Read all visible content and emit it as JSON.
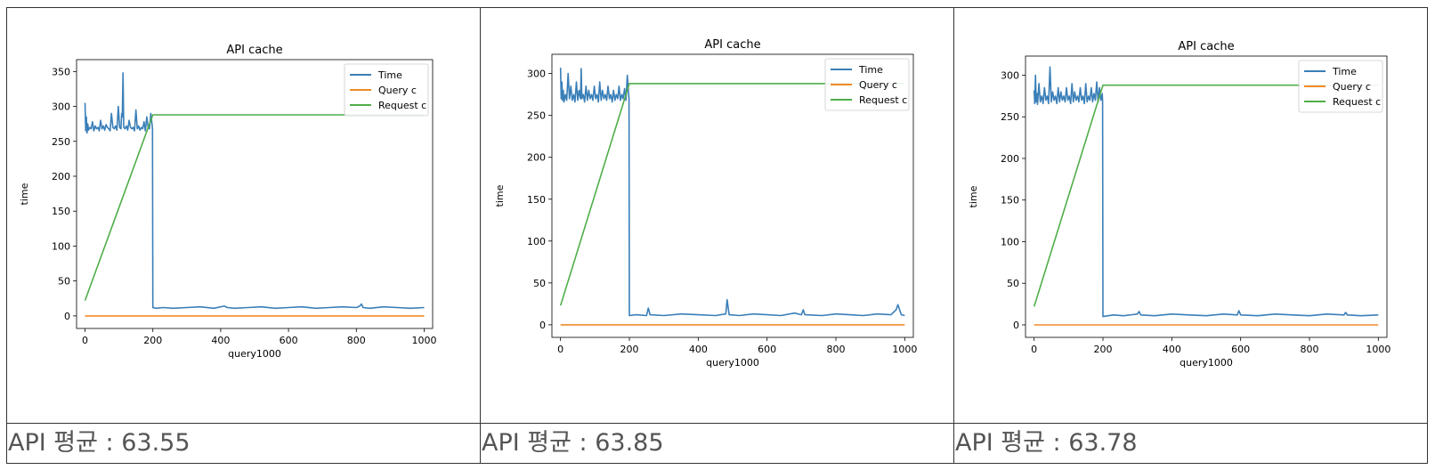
{
  "cells": [
    {
      "avg_label": "API 평균 : 63.55"
    },
    {
      "avg_label": "API 평균 : 63.85"
    },
    {
      "avg_label": "API 평균 : 63.78"
    }
  ],
  "chart_data": [
    {
      "type": "line",
      "title": "API cache",
      "xlabel": "query1000",
      "ylabel": "time",
      "xlim": [
        -25,
        1025
      ],
      "ylim": [
        -18,
        367
      ],
      "xticks": [
        0,
        200,
        400,
        600,
        800,
        1000
      ],
      "yticks": [
        0,
        50,
        100,
        150,
        200,
        250,
        300,
        350
      ],
      "legend": "top-right",
      "series": [
        {
          "name": "Time",
          "color": "#3a7fb8",
          "x": [
            0,
            2,
            4,
            6,
            8,
            10,
            14,
            18,
            22,
            26,
            30,
            34,
            38,
            42,
            46,
            50,
            54,
            58,
            62,
            66,
            70,
            74,
            78,
            82,
            86,
            90,
            94,
            98,
            102,
            106,
            108,
            110,
            112,
            114,
            118,
            122,
            126,
            130,
            134,
            138,
            142,
            146,
            150,
            154,
            158,
            162,
            166,
            170,
            174,
            178,
            182,
            186,
            190,
            194,
            198,
            199,
            200,
            210,
            230,
            260,
            300,
            340,
            380,
            410,
            420,
            440,
            480,
            520,
            560,
            600,
            640,
            680,
            720,
            760,
            800,
            810,
            815,
            820,
            840,
            880,
            920,
            960,
            1000
          ],
          "values": [
            305,
            265,
            285,
            262,
            275,
            266,
            270,
            268,
            278,
            265,
            272,
            268,
            270,
            265,
            280,
            268,
            272,
            266,
            274,
            270,
            268,
            265,
            290,
            270,
            268,
            272,
            266,
            300,
            270,
            268,
            290,
            285,
            348,
            270,
            268,
            272,
            266,
            280,
            270,
            268,
            270,
            265,
            295,
            268,
            272,
            266,
            270,
            268,
            278,
            265,
            285,
            270,
            268,
            290,
            272,
            268,
            12,
            11,
            12,
            11,
            12,
            13,
            11,
            14,
            12,
            11,
            12,
            13,
            11,
            12,
            13,
            11,
            12,
            13,
            12,
            14,
            17,
            12,
            11,
            13,
            12,
            11,
            12
          ]
        },
        {
          "name": "Query c",
          "color": "#f08b26",
          "x": [
            0,
            1000
          ],
          "values": [
            0,
            0
          ]
        },
        {
          "name": "Request c",
          "color": "#4fae48",
          "x": [
            0,
            200,
            1000
          ],
          "values": [
            22,
            288,
            288
          ]
        }
      ]
    },
    {
      "type": "line",
      "title": "API cache",
      "xlabel": "query1000",
      "ylabel": "time",
      "xlim": [
        -25,
        1025
      ],
      "ylim": [
        -15,
        323
      ],
      "xticks": [
        0,
        200,
        400,
        600,
        800,
        1000
      ],
      "yticks": [
        0,
        50,
        100,
        150,
        200,
        250,
        300
      ],
      "legend": "top-right",
      "series": [
        {
          "name": "Time",
          "color": "#3a7fb8",
          "x": [
            0,
            2,
            4,
            6,
            8,
            10,
            14,
            18,
            22,
            26,
            30,
            34,
            38,
            42,
            46,
            50,
            54,
            58,
            60,
            62,
            66,
            70,
            74,
            78,
            82,
            86,
            90,
            94,
            98,
            102,
            106,
            110,
            114,
            118,
            122,
            126,
            130,
            134,
            138,
            142,
            146,
            150,
            154,
            158,
            162,
            166,
            170,
            174,
            178,
            182,
            186,
            190,
            194,
            198,
            199,
            200,
            220,
            250,
            255,
            260,
            300,
            350,
            400,
            450,
            480,
            484,
            490,
            520,
            560,
            600,
            640,
            680,
            700,
            705,
            710,
            760,
            800,
            840,
            880,
            920,
            960,
            975,
            980,
            990,
            1000
          ],
          "values": [
            307,
            270,
            290,
            268,
            280,
            266,
            275,
            268,
            300,
            270,
            285,
            268,
            275,
            266,
            290,
            268,
            280,
            270,
            306,
            270,
            275,
            266,
            285,
            268,
            280,
            270,
            275,
            268,
            285,
            270,
            275,
            266,
            290,
            268,
            280,
            270,
            275,
            268,
            285,
            270,
            275,
            266,
            280,
            268,
            275,
            270,
            285,
            268,
            275,
            270,
            282,
            268,
            298,
            275,
            270,
            11,
            12,
            11,
            20,
            12,
            11,
            13,
            12,
            11,
            13,
            30,
            12,
            11,
            13,
            12,
            11,
            14,
            12,
            18,
            12,
            11,
            13,
            12,
            11,
            13,
            12,
            18,
            24,
            12,
            11
          ]
        },
        {
          "name": "Query c",
          "color": "#f08b26",
          "x": [
            0,
            1000
          ],
          "values": [
            0,
            0
          ]
        },
        {
          "name": "Request c",
          "color": "#4fae48",
          "x": [
            0,
            200,
            1000
          ],
          "values": [
            23,
            288,
            288
          ]
        }
      ]
    },
    {
      "type": "line",
      "title": "API cache",
      "xlabel": "query1000",
      "ylabel": "time",
      "xlim": [
        -25,
        1025
      ],
      "ylim": [
        -15,
        323
      ],
      "xticks": [
        0,
        200,
        400,
        600,
        800,
        1000
      ],
      "yticks": [
        0,
        50,
        100,
        150,
        200,
        250,
        300
      ],
      "legend": "top-right",
      "series": [
        {
          "name": "Time",
          "color": "#3a7fb8",
          "x": [
            0,
            2,
            4,
            6,
            8,
            10,
            14,
            18,
            22,
            26,
            30,
            34,
            38,
            42,
            46,
            50,
            54,
            58,
            62,
            66,
            70,
            74,
            78,
            82,
            86,
            90,
            94,
            98,
            102,
            106,
            110,
            114,
            118,
            122,
            126,
            130,
            134,
            138,
            142,
            146,
            150,
            154,
            158,
            162,
            166,
            170,
            174,
            178,
            182,
            186,
            190,
            194,
            198,
            199,
            200,
            230,
            260,
            300,
            305,
            310,
            350,
            400,
            450,
            500,
            550,
            590,
            595,
            600,
            650,
            700,
            750,
            800,
            850,
            900,
            905,
            910,
            950,
            1000
          ],
          "values": [
            282,
            266,
            300,
            268,
            278,
            265,
            290,
            268,
            275,
            266,
            285,
            270,
            275,
            266,
            310,
            268,
            280,
            270,
            275,
            266,
            285,
            268,
            280,
            270,
            275,
            268,
            285,
            270,
            275,
            266,
            290,
            268,
            280,
            270,
            275,
            268,
            285,
            270,
            275,
            266,
            290,
            268,
            275,
            270,
            285,
            268,
            278,
            270,
            292,
            268,
            285,
            270,
            278,
            268,
            10,
            12,
            11,
            13,
            16,
            12,
            11,
            13,
            12,
            11,
            13,
            12,
            17,
            12,
            11,
            13,
            12,
            11,
            13,
            12,
            15,
            12,
            11,
            12
          ]
        },
        {
          "name": "Query c",
          "color": "#f08b26",
          "x": [
            0,
            1000
          ],
          "values": [
            0,
            0
          ]
        },
        {
          "name": "Request c",
          "color": "#4fae48",
          "x": [
            0,
            200,
            1000
          ],
          "values": [
            22,
            288,
            288
          ]
        }
      ]
    }
  ]
}
